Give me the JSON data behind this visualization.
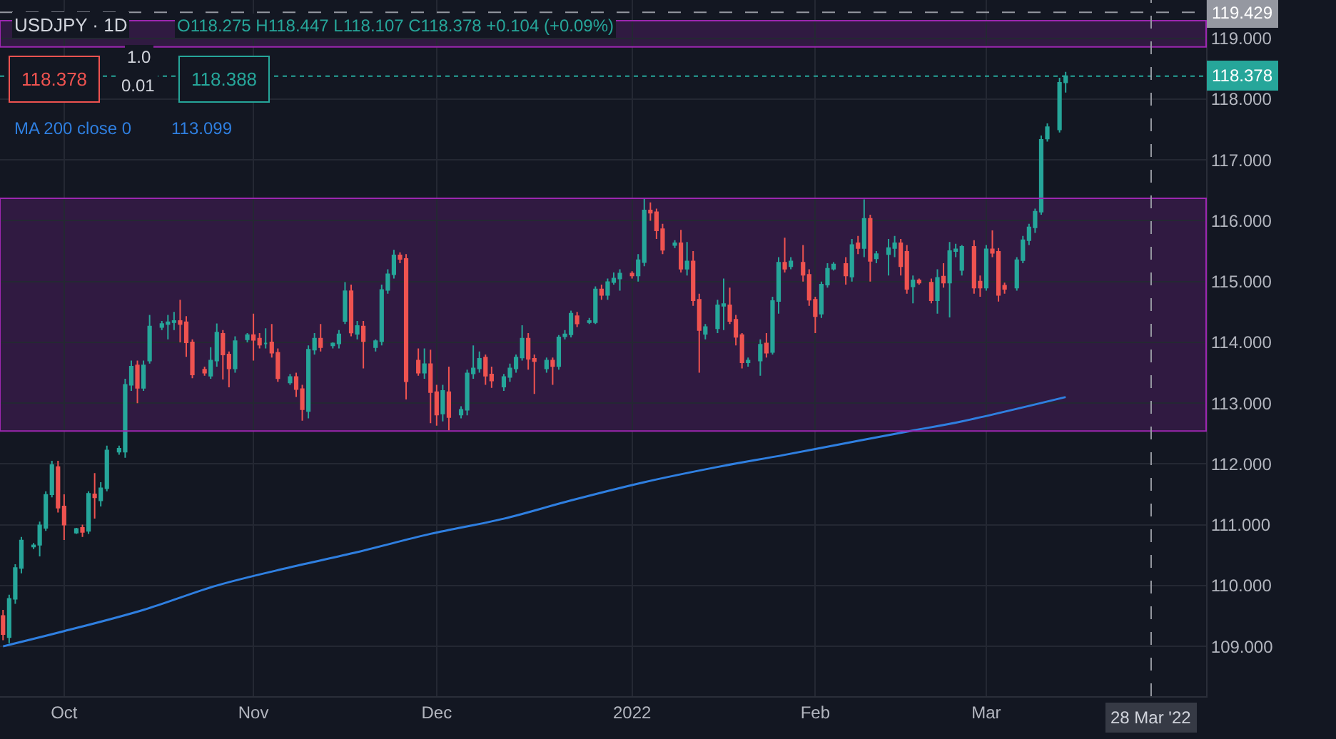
{
  "chart_data": {
    "type": "candlestick",
    "title": "USDJPY · 1D",
    "colors": [
      "#ef5350",
      "#26a69a",
      "#26a69a",
      "#26a69a",
      "#26a69a",
      "#26a69a",
      "#26a69a",
      "#26a69a",
      "#ef5350",
      "#ef5350",
      "#26a69a",
      "#ef5350",
      "#26a69a",
      "#ef5350",
      "#26a69a",
      "#26a69a",
      "#26a69a",
      "#26a69a",
      "#26a69a",
      "#ef5350",
      "#26a69a",
      "#26a69a",
      "#26a69a",
      "#26a69a",
      "#26a69a",
      "#ef5350",
      "#ef5350",
      "#ef5350",
      "#ef5350",
      "#26a69a",
      "#26a69a",
      "#ef5350",
      "#ef5350",
      "#26a69a",
      "#26a69a",
      "#ef5350",
      "#ef5350",
      "#26a69a",
      "#ef5350",
      "#ef5350",
      "#26a69a",
      "#ef5350",
      "#ef5350",
      "#26a69a",
      "#26a69a",
      "#ef5350",
      "#26a69a",
      "#26a69a",
      "#26a69a",
      "#ef5350",
      "#26a69a",
      "#ef5350",
      "#26a69a",
      "#26a69a",
      "#26a69a",
      "#26a69a",
      "#ef5350",
      "#ef5350",
      "#ef5350",
      "#26a69a",
      "#ef5350",
      "#ef5350",
      "#26a69a",
      "#ef5350",
      "#26a69a",
      "#26a69a",
      "#26a69a",
      "#26a69a",
      "#ef5350",
      "#ef5350",
      "#26a69a",
      "#26a69a",
      "#26a69a",
      "#26a69a",
      "#ef5350",
      "#ef5350",
      "#26a69a",
      "#ef5350",
      "#26a69a",
      "#26a69a",
      "#26a69a",
      "#ef5350",
      "#26a69a",
      "#26a69a",
      "#ef5350",
      "#26a69a",
      "#26a69a",
      "#26a69a",
      "#ef5350",
      "#26a69a",
      "#26a69a",
      "#ef5350",
      "#ef5350",
      "#ef5350",
      "#26a69a",
      "#ef5350",
      "#26a69a",
      "#ef5350",
      "#ef5350",
      "#26a69a",
      "#26a69a",
      "#26a69a",
      "#ef5350",
      "#ef5350",
      "#ef5350",
      "#26a69a",
      "#26a69a",
      "#ef5350",
      "#26a69a",
      "#26a69a",
      "#ef5350",
      "#26a69a",
      "#ef5350",
      "#ef5350",
      "#ef5350",
      "#26a69a",
      "#26a69a",
      "#26a69a",
      "#ef5350",
      "#26a69a",
      "#ef5350",
      "#26a69a",
      "#ef5350",
      "#26a69a",
      "#26a69a",
      "#26a69a",
      "#ef5350",
      "#ef5350",
      "#26a69a",
      "#ef5350",
      "#ef5350",
      "#26a69a",
      "#ef5350",
      "#26a69a",
      "#26a69a",
      "#26a69a",
      "#ef5350",
      "#ef5350",
      "#26a69a",
      "#ef5350",
      "#ef5350",
      "#ef5350",
      "#26a69a",
      "#26a69a",
      "#26a69a",
      "#26a69a",
      "#26a69a",
      "#26a69a",
      "#26a69a",
      "#26a69a"
    ],
    "x": [
      "2021-09-21",
      "2021-09-22",
      "2021-09-23",
      "2021-09-24",
      "2021-09-26",
      "2021-09-27",
      "2021-09-28",
      "2021-09-29",
      "2021-09-30",
      "2021-10-01",
      "2021-10-03",
      "2021-10-04",
      "2021-10-05",
      "2021-10-06",
      "2021-10-07",
      "2021-10-08",
      "2021-10-10",
      "2021-10-11",
      "2021-10-12",
      "2021-10-13",
      "2021-10-14",
      "2021-10-15",
      "2021-10-17",
      "2021-10-18",
      "2021-10-19",
      "2021-10-20",
      "2021-10-21",
      "2021-10-22",
      "2021-10-24",
      "2021-10-25",
      "2021-10-26",
      "2021-10-27",
      "2021-10-28",
      "2021-10-29",
      "2021-10-31",
      "2021-11-01",
      "2021-11-02",
      "2021-11-03",
      "2021-11-04",
      "2021-11-05",
      "2021-11-07",
      "2021-11-08",
      "2021-11-09",
      "2021-11-10",
      "2021-11-11",
      "2021-11-12",
      "2021-11-14",
      "2021-11-15",
      "2021-11-16",
      "2021-11-17",
      "2021-11-18",
      "2021-11-19",
      "2021-11-21",
      "2021-11-22",
      "2021-11-23",
      "2021-11-24",
      "2021-11-25",
      "2021-11-26",
      "2021-11-28",
      "2021-11-29",
      "2021-11-30",
      "2021-12-01",
      "2021-12-02",
      "2021-12-03",
      "2021-12-05",
      "2021-12-06",
      "2021-12-07",
      "2021-12-08",
      "2021-12-09",
      "2021-12-10",
      "2021-12-12",
      "2021-12-13",
      "2021-12-14",
      "2021-12-15",
      "2021-12-16",
      "2021-12-17",
      "2021-12-19",
      "2021-12-20",
      "2021-12-21",
      "2021-12-22",
      "2021-12-23",
      "2021-12-24",
      "2021-12-26",
      "2021-12-27",
      "2021-12-28",
      "2021-12-29",
      "2021-12-30",
      "2021-12-31",
      "2022-01-02",
      "2022-01-03",
      "2022-01-04",
      "2022-01-05",
      "2022-01-06",
      "2022-01-07",
      "2022-01-09",
      "2022-01-10",
      "2022-01-11",
      "2022-01-12",
      "2022-01-13",
      "2022-01-14",
      "2022-01-16",
      "2022-01-17",
      "2022-01-18",
      "2022-01-19",
      "2022-01-20",
      "2022-01-21",
      "2022-01-23",
      "2022-01-24",
      "2022-01-25",
      "2022-01-26",
      "2022-01-27",
      "2022-01-28",
      "2022-01-30",
      "2022-01-31",
      "2022-02-01",
      "2022-02-02",
      "2022-02-03",
      "2022-02-04",
      "2022-02-06",
      "2022-02-07",
      "2022-02-08",
      "2022-02-09",
      "2022-02-10",
      "2022-02-11",
      "2022-02-13",
      "2022-02-14",
      "2022-02-15",
      "2022-02-16",
      "2022-02-17",
      "2022-02-18",
      "2022-02-20",
      "2022-02-21",
      "2022-02-22",
      "2022-02-23",
      "2022-02-24",
      "2022-02-25",
      "2022-02-27",
      "2022-02-28",
      "2022-03-01",
      "2022-03-02",
      "2022-03-03",
      "2022-03-04",
      "2022-03-06",
      "2022-03-07",
      "2022-03-08",
      "2022-03-09",
      "2022-03-10",
      "2022-03-11",
      "2022-03-13",
      "2022-03-14"
    ],
    "ohlc": [
      [
        109.5,
        109.6,
        109.1,
        109.2
      ],
      [
        109.15,
        109.85,
        109.05,
        109.78
      ],
      [
        109.78,
        110.35,
        109.7,
        110.29
      ],
      [
        110.29,
        110.8,
        110.2,
        110.74
      ],
      [
        110.64,
        110.7,
        110.6,
        110.66
      ],
      [
        110.67,
        111.05,
        110.48,
        110.99
      ],
      [
        110.95,
        111.55,
        110.9,
        111.49
      ],
      [
        111.5,
        112.05,
        111.45,
        111.98
      ],
      [
        111.95,
        112.05,
        111.2,
        111.28
      ],
      [
        111.3,
        111.5,
        110.75,
        111.0
      ],
      [
        110.87,
        110.95,
        110.85,
        110.93
      ],
      [
        110.95,
        111.0,
        110.8,
        110.88
      ],
      [
        110.9,
        111.55,
        110.85,
        111.51
      ],
      [
        111.5,
        111.85,
        111.1,
        111.45
      ],
      [
        111.4,
        111.7,
        111.3,
        111.6
      ],
      [
        111.6,
        112.3,
        111.55,
        112.22
      ],
      [
        112.2,
        112.3,
        112.15,
        112.25
      ],
      [
        112.2,
        113.4,
        112.1,
        113.3
      ],
      [
        113.3,
        113.7,
        113.2,
        113.6
      ],
      [
        113.62,
        113.7,
        113.0,
        113.25
      ],
      [
        113.25,
        113.7,
        113.2,
        113.62
      ],
      [
        113.7,
        114.45,
        113.65,
        114.26
      ],
      [
        114.25,
        114.35,
        114.2,
        114.3
      ],
      [
        114.3,
        114.45,
        114.05,
        114.33
      ],
      [
        114.33,
        114.5,
        114.2,
        114.35
      ],
      [
        114.35,
        114.7,
        114.0,
        114.3
      ],
      [
        114.33,
        114.43,
        113.76,
        114.0
      ],
      [
        114.0,
        114.05,
        113.41,
        113.47
      ],
      [
        113.55,
        113.6,
        113.45,
        113.5
      ],
      [
        113.45,
        113.92,
        113.4,
        113.7
      ],
      [
        113.7,
        114.31,
        113.6,
        114.16
      ],
      [
        114.14,
        114.2,
        113.39,
        113.8
      ],
      [
        113.8,
        113.85,
        113.26,
        113.57
      ],
      [
        113.57,
        114.1,
        113.5,
        114.02
      ],
      [
        114.05,
        114.15,
        114.0,
        114.12
      ],
      [
        114.12,
        114.47,
        113.7,
        114.04
      ],
      [
        114.06,
        114.15,
        113.9,
        113.96
      ],
      [
        113.98,
        114.23,
        113.9,
        113.98
      ],
      [
        114.0,
        114.3,
        113.75,
        113.83
      ],
      [
        113.83,
        113.9,
        113.35,
        113.41
      ],
      [
        113.34,
        113.48,
        113.3,
        113.43
      ],
      [
        113.43,
        113.5,
        113.1,
        113.23
      ],
      [
        113.23,
        113.3,
        112.71,
        112.9
      ],
      [
        112.87,
        113.95,
        112.75,
        113.88
      ],
      [
        113.88,
        114.15,
        113.8,
        114.06
      ],
      [
        114.06,
        114.3,
        113.85,
        113.92
      ],
      [
        113.95,
        114.0,
        113.9,
        113.98
      ],
      [
        113.98,
        114.2,
        113.9,
        114.13
      ],
      [
        114.35,
        114.99,
        114.3,
        114.84
      ],
      [
        114.84,
        114.95,
        114.1,
        114.16
      ],
      [
        114.14,
        114.35,
        114.05,
        114.27
      ],
      [
        114.26,
        114.35,
        113.57,
        114.02
      ],
      [
        113.92,
        114.05,
        113.85,
        114.02
      ],
      [
        114.02,
        114.95,
        113.95,
        114.86
      ],
      [
        114.86,
        115.2,
        114.8,
        115.12
      ],
      [
        115.12,
        115.52,
        115.05,
        115.43
      ],
      [
        115.43,
        115.48,
        115.3,
        115.37
      ],
      [
        115.37,
        115.45,
        113.06,
        113.36
      ],
      [
        113.7,
        113.9,
        113.45,
        113.5
      ],
      [
        113.5,
        113.9,
        113.4,
        113.64
      ],
      [
        113.64,
        113.88,
        112.67,
        113.18
      ],
      [
        113.18,
        113.3,
        112.63,
        112.81
      ],
      [
        112.83,
        113.3,
        112.7,
        113.2
      ],
      [
        113.18,
        113.6,
        112.55,
        112.77
      ],
      [
        112.81,
        112.95,
        112.75,
        112.89
      ],
      [
        112.89,
        113.55,
        112.8,
        113.49
      ],
      [
        113.49,
        113.95,
        113.4,
        113.57
      ],
      [
        113.57,
        113.85,
        113.5,
        113.73
      ],
      [
        113.75,
        113.8,
        113.3,
        113.45
      ],
      [
        113.47,
        113.6,
        113.25,
        113.37
      ],
      [
        113.27,
        113.48,
        113.2,
        113.43
      ],
      [
        113.43,
        113.65,
        113.35,
        113.57
      ],
      [
        113.57,
        113.8,
        113.5,
        113.75
      ],
      [
        113.75,
        114.28,
        113.7,
        114.06
      ],
      [
        114.06,
        114.15,
        113.55,
        113.73
      ],
      [
        113.73,
        113.8,
        113.15,
        113.69
      ],
      [
        113.57,
        113.75,
        113.5,
        113.7
      ],
      [
        113.7,
        113.75,
        113.3,
        113.61
      ],
      [
        113.61,
        114.12,
        113.55,
        114.08
      ],
      [
        114.1,
        114.2,
        114.05,
        114.13
      ],
      [
        114.13,
        114.52,
        114.08,
        114.47
      ],
      [
        114.43,
        114.5,
        114.25,
        114.31
      ],
      [
        114.33,
        114.4,
        114.3,
        114.35
      ],
      [
        114.33,
        114.92,
        114.3,
        114.87
      ],
      [
        114.87,
        114.95,
        114.7,
        114.78
      ],
      [
        114.78,
        115.05,
        114.7,
        114.99
      ],
      [
        114.99,
        115.15,
        114.95,
        115.05
      ],
      [
        115.05,
        115.2,
        114.85,
        115.13
      ],
      [
        115.13,
        115.17,
        115.05,
        115.1
      ],
      [
        115.1,
        115.45,
        115.0,
        115.35
      ],
      [
        115.32,
        116.36,
        115.25,
        116.17
      ],
      [
        116.17,
        116.3,
        116.0,
        116.13
      ],
      [
        116.14,
        116.2,
        115.7,
        115.84
      ],
      [
        115.86,
        115.95,
        115.45,
        115.52
      ],
      [
        115.6,
        115.68,
        115.55,
        115.63
      ],
      [
        115.63,
        115.85,
        115.15,
        115.21
      ],
      [
        115.21,
        115.65,
        115.1,
        115.33
      ],
      [
        115.33,
        115.5,
        114.6,
        114.69
      ],
      [
        114.7,
        114.8,
        113.5,
        114.2
      ],
      [
        114.14,
        114.3,
        114.05,
        114.25
      ],
      [
        114.23,
        114.7,
        114.15,
        114.61
      ],
      [
        114.6,
        115.05,
        114.2,
        114.63
      ],
      [
        114.61,
        114.9,
        114.3,
        114.35
      ],
      [
        114.37,
        114.45,
        113.95,
        114.09
      ],
      [
        114.12,
        114.15,
        113.57,
        113.67
      ],
      [
        113.67,
        113.75,
        113.6,
        113.7
      ],
      [
        113.7,
        114.05,
        113.45,
        113.96
      ],
      [
        113.98,
        114.15,
        113.75,
        113.83
      ],
      [
        113.84,
        114.75,
        113.8,
        114.68
      ],
      [
        114.68,
        115.4,
        114.47,
        115.31
      ],
      [
        115.31,
        115.72,
        115.15,
        115.21
      ],
      [
        115.25,
        115.4,
        115.2,
        115.33
      ],
      [
        115.31,
        115.6,
        115.0,
        115.11
      ],
      [
        115.11,
        115.2,
        114.6,
        114.7
      ],
      [
        114.7,
        114.75,
        114.15,
        114.43
      ],
      [
        114.47,
        115.0,
        114.4,
        114.95
      ],
      [
        114.95,
        115.3,
        114.9,
        115.21
      ],
      [
        115.21,
        115.32,
        115.18,
        115.28
      ],
      [
        115.29,
        115.4,
        114.95,
        115.1
      ],
      [
        115.08,
        115.7,
        115.0,
        115.6
      ],
      [
        115.63,
        115.75,
        115.45,
        115.55
      ],
      [
        115.55,
        116.35,
        115.4,
        116.03
      ],
      [
        116.03,
        116.1,
        115.0,
        115.34
      ],
      [
        115.38,
        115.5,
        115.3,
        115.45
      ],
      [
        115.45,
        115.7,
        115.1,
        115.55
      ],
      [
        115.55,
        115.75,
        115.4,
        115.63
      ],
      [
        115.63,
        115.7,
        115.1,
        115.25
      ],
      [
        115.49,
        115.6,
        114.8,
        114.88
      ],
      [
        114.92,
        115.1,
        114.64,
        115.02
      ],
      [
        115.02,
        115.05,
        114.95,
        114.98
      ],
      [
        114.98,
        115.05,
        114.64,
        114.69
      ],
      [
        114.69,
        115.2,
        114.47,
        115.06
      ],
      [
        115.08,
        115.3,
        114.9,
        114.98
      ],
      [
        114.98,
        115.65,
        114.41,
        115.5
      ],
      [
        115.5,
        115.62,
        115.4,
        115.53
      ],
      [
        115.19,
        115.6,
        115.1,
        115.57
      ],
      [
        115.57,
        115.68,
        114.8,
        114.9
      ],
      [
        115.0,
        115.1,
        114.75,
        114.9
      ],
      [
        114.9,
        115.6,
        114.85,
        115.53
      ],
      [
        115.53,
        115.84,
        115.4,
        115.47
      ],
      [
        115.49,
        115.55,
        114.67,
        114.78
      ],
      [
        114.93,
        114.98,
        114.8,
        114.88
      ],
      [
        114.9,
        115.4,
        114.85,
        115.35
      ],
      [
        115.35,
        115.75,
        115.3,
        115.68
      ],
      [
        115.68,
        115.95,
        115.6,
        115.89
      ],
      [
        115.89,
        116.2,
        115.8,
        116.15
      ],
      [
        116.15,
        117.4,
        116.1,
        117.33
      ],
      [
        117.35,
        117.6,
        117.3,
        117.54
      ],
      [
        117.5,
        118.35,
        117.45,
        118.27
      ],
      [
        118.275,
        118.447,
        118.107,
        118.378
      ]
    ],
    "series": [
      {
        "name": "MA 200 close 0",
        "type": "line",
        "color": "#2f7fe0",
        "x": [
          "2021-09-21",
          "2021-10-01",
          "2021-10-14",
          "2021-10-26",
          "2021-11-07",
          "2021-11-18",
          "2021-11-30",
          "2021-12-12",
          "2021-12-23",
          "2022-01-04",
          "2022-01-16",
          "2022-01-27",
          "2022-02-08",
          "2022-02-17",
          "2022-02-25",
          "2022-03-14"
        ],
        "values": [
          109.0,
          109.25,
          109.6,
          110.0,
          110.3,
          110.55,
          110.85,
          111.1,
          111.4,
          111.7,
          111.95,
          112.15,
          112.38,
          112.55,
          112.7,
          113.1
        ]
      }
    ],
    "xlim": [
      "2021-09-20T12:00",
      "2022-04-06"
    ],
    "xticks": [
      {
        "value": "2021-10-01",
        "label": "Oct"
      },
      {
        "value": "2021-11-01",
        "label": "Nov"
      },
      {
        "value": "2021-12-01",
        "label": "Dec"
      },
      {
        "value": "2022-01-02",
        "label": "2022"
      },
      {
        "value": "2022-02-01",
        "label": "Feb"
      },
      {
        "value": "2022-03-01",
        "label": "Mar"
      }
    ],
    "ylim": [
      108.18,
      119.63
    ],
    "yticks": [
      {
        "value": 109,
        "label": "109.000"
      },
      {
        "value": 110,
        "label": "110.000"
      },
      {
        "value": 111,
        "label": "111.000"
      },
      {
        "value": 112,
        "label": "112.000"
      },
      {
        "value": 113,
        "label": "113.000"
      },
      {
        "value": 114,
        "label": "114.000"
      },
      {
        "value": 115,
        "label": "115.000"
      },
      {
        "value": 116,
        "label": "116.000"
      },
      {
        "value": 117,
        "label": "117.000"
      },
      {
        "value": 118,
        "label": "118.000"
      },
      {
        "value": 119,
        "label": "119.000"
      }
    ],
    "grid": true,
    "ref_lines": [
      {
        "axis": "y",
        "value": 118.378,
        "label": "118.378",
        "color": "#26a69a",
        "line_style": "dotted"
      },
      {
        "axis": "y",
        "value": 119.429,
        "label": "119.429",
        "color": "#9598a1",
        "line_style": "dashed"
      },
      {
        "axis": "x",
        "value": "2022-03-28",
        "label": "28 Mar '22",
        "color": "#9598a1",
        "line_style": "dashed"
      }
    ],
    "bands": [
      {
        "axis": "y",
        "from": 112.54,
        "to": 116.37,
        "color": "#9c27b0"
      },
      {
        "axis": "y",
        "from": 118.86,
        "to": 119.29,
        "color": "#9c27b0"
      }
    ],
    "annotations": [
      "O118.275 H118.447 L118.107 C118.378 +0.104 (+0.09%)",
      "118.378",
      "1.0",
      "0.01",
      "118.388",
      "113.099"
    ]
  }
}
